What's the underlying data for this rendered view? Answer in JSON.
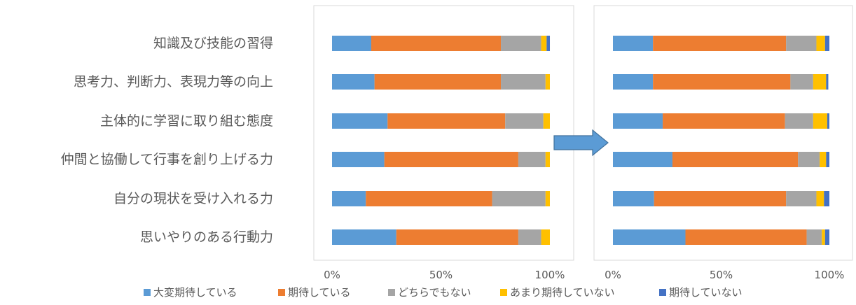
{
  "chart_data": {
    "type": "bar",
    "orientation": "horizontal",
    "stacked": "percent",
    "categories": [
      "知識及び技能の習得",
      "思考力、判断力、表現力等の向上",
      "主体的に学習に取り組む態度",
      "仲間と協働して行事を創り上げる力",
      "自分の現状を受け入れる力",
      "思いやりのある行動力"
    ],
    "x_ticks": [
      "0%",
      "50%",
      "100%"
    ],
    "xlim": [
      0,
      100
    ],
    "legend": {
      "placement": "bottom",
      "items": [
        "大変期待している",
        "期待している",
        "どちらでもない",
        "あまり期待していない",
        "期待していない"
      ]
    },
    "colors": [
      "#5B9BD5",
      "#ED7D31",
      "#A5A5A5",
      "#FFC000",
      "#4472C4"
    ],
    "panels": [
      {
        "series": [
          {
            "name": "大変期待している",
            "values": [
              18,
              19.5,
              25.5,
              24,
              15.5,
              29.5
            ]
          },
          {
            "name": "期待している",
            "values": [
              59.5,
              58,
              54,
              61.5,
              58,
              56
            ]
          },
          {
            "name": "どちらでもない",
            "values": [
              18.5,
              20.5,
              17.5,
              12.5,
              24.5,
              10.5
            ]
          },
          {
            "name": "あまり期待していない",
            "values": [
              2.5,
              2,
              3,
              2,
              2,
              4
            ]
          },
          {
            "name": "期待していない",
            "values": [
              1.5,
              0,
              0,
              0,
              0,
              0
            ]
          }
        ]
      },
      {
        "series": [
          {
            "name": "大変期待している",
            "values": [
              18.5,
              18.5,
              23,
              27.5,
              19,
              33.5
            ]
          },
          {
            "name": "期待している",
            "values": [
              61.5,
              63.5,
              56.5,
              58,
              61,
              56
            ]
          },
          {
            "name": "どちらでもない",
            "values": [
              14,
              10.5,
              13,
              10,
              14,
              7
            ]
          },
          {
            "name": "あまり期待していない",
            "values": [
              4,
              6,
              6.5,
              3,
              3.5,
              1.5
            ]
          },
          {
            "name": "期待していない",
            "values": [
              2,
              1,
              1,
              1.5,
              2.5,
              2
            ]
          }
        ]
      }
    ]
  },
  "icons": {
    "transition_arrow": "right-arrow-icon"
  }
}
